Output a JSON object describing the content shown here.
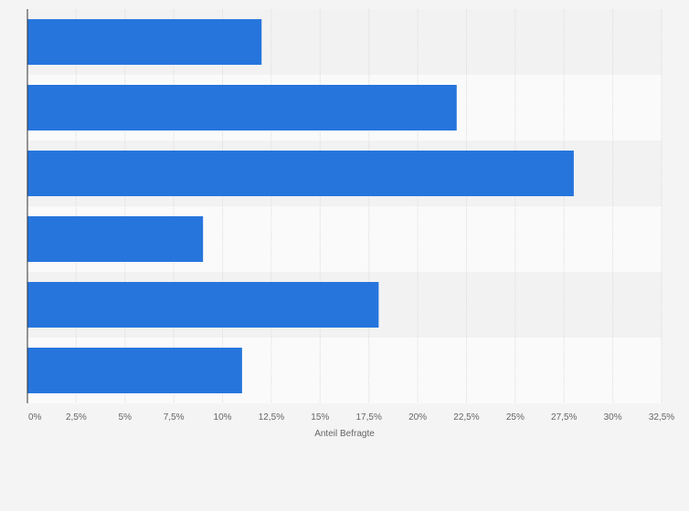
{
  "chart_data": {
    "type": "bar",
    "orientation": "horizontal",
    "categories": [
      "",
      "",
      "",
      "",
      "",
      ""
    ],
    "values": [
      12,
      22,
      28,
      9,
      18,
      11
    ],
    "unit": "%",
    "xlabel": "Anteil Befragte",
    "ylabel": "",
    "xlim": [
      0,
      32.5
    ],
    "x_ticks": [
      "0%",
      "2,5%",
      "5%",
      "7,5%",
      "10%",
      "12,5%",
      "15%",
      "17,5%",
      "20%",
      "22,5%",
      "25%",
      "27,5%",
      "30%",
      "32,5%"
    ],
    "grid": true,
    "legend": "none",
    "bar_color": "#2675dd"
  }
}
